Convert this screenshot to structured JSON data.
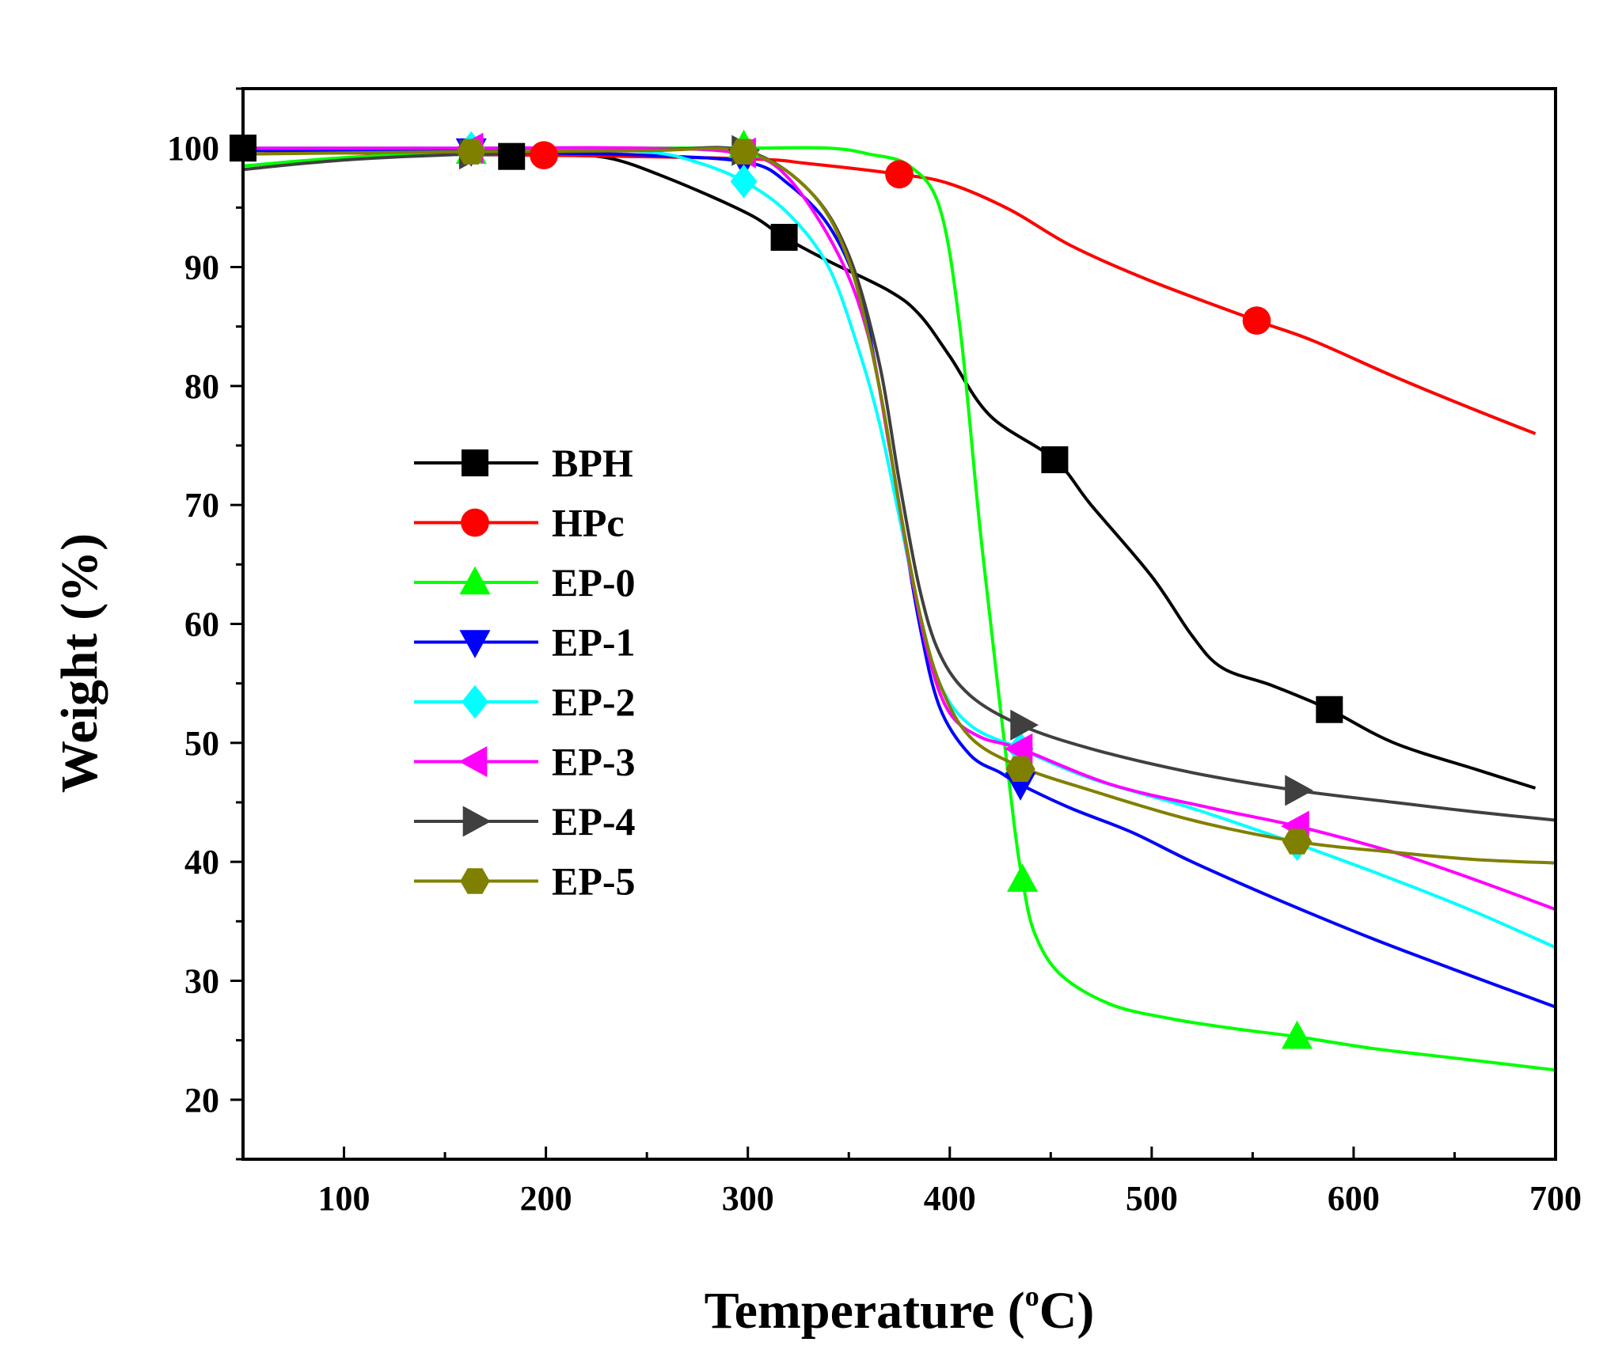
{
  "chart_data": {
    "type": "line",
    "title": "",
    "xlabel": "Temperature (",
    "xlabel_sup": "o",
    "xlabel_unit": "C)",
    "ylabel": "Weight (%)",
    "xlim": [
      50,
      700
    ],
    "ylim": [
      15,
      105
    ],
    "x_ticks": [
      100,
      200,
      300,
      400,
      500,
      600,
      700
    ],
    "x_tick_labels": [
      "100",
      "200",
      "300",
      "400",
      "500",
      "600",
      "700"
    ],
    "y_ticks": [
      20,
      30,
      40,
      50,
      60,
      70,
      80,
      90,
      100
    ],
    "y_tick_labels": [
      "20",
      "30",
      "40",
      "50",
      "60",
      "70",
      "80",
      "90",
      "100"
    ],
    "grid": false,
    "legend_position": "center-left",
    "series": [
      {
        "name": "BPH",
        "color": "#000000",
        "marker": "square",
        "points": [
          [
            50,
            100
          ],
          [
            100,
            99.8
          ],
          [
            150,
            99.5
          ],
          [
            200,
            99.4
          ],
          [
            230,
            99.2
          ],
          [
            260,
            97.5
          ],
          [
            300,
            94.5
          ],
          [
            318,
            92.5
          ],
          [
            340,
            90.5
          ],
          [
            370,
            88
          ],
          [
            385,
            86
          ],
          [
            400,
            82.5
          ],
          [
            420,
            77.5
          ],
          [
            452,
            73.8
          ],
          [
            470,
            70
          ],
          [
            500,
            64
          ],
          [
            520,
            59
          ],
          [
            535,
            56.3
          ],
          [
            560,
            54.8
          ],
          [
            588,
            52.8
          ],
          [
            620,
            50
          ],
          [
            660,
            47.8
          ],
          [
            690,
            46.2
          ]
        ],
        "markers": [
          [
            50,
            100
          ],
          [
            183,
            99.3
          ],
          [
            318,
            92.5
          ],
          [
            452,
            73.8
          ],
          [
            588,
            52.8
          ]
        ]
      },
      {
        "name": "HPc",
        "color": "#ff0000",
        "marker": "circle",
        "points": [
          [
            50,
            99.5
          ],
          [
            100,
            99.6
          ],
          [
            200,
            99.4
          ],
          [
            300,
            99.1
          ],
          [
            330,
            98.7
          ],
          [
            375,
            97.8
          ],
          [
            400,
            97
          ],
          [
            430,
            94.8
          ],
          [
            460,
            91.8
          ],
          [
            500,
            88.8
          ],
          [
            552,
            85.5
          ],
          [
            580,
            83.8
          ],
          [
            620,
            80.8
          ],
          [
            660,
            78
          ],
          [
            690,
            76
          ]
        ],
        "markers": [
          [
            199,
            99.4
          ],
          [
            375,
            97.8
          ],
          [
            552,
            85.5
          ]
        ]
      },
      {
        "name": "EP-0",
        "color": "#00ff00",
        "marker": "triangle-up",
        "points": [
          [
            50,
            98.5
          ],
          [
            100,
            99.2
          ],
          [
            163,
            99.7
          ],
          [
            200,
            99.9
          ],
          [
            250,
            100
          ],
          [
            300,
            100
          ],
          [
            340,
            100
          ],
          [
            360,
            99.5
          ],
          [
            380,
            98.5
          ],
          [
            395,
            95
          ],
          [
            405,
            85
          ],
          [
            415,
            68
          ],
          [
            425,
            53
          ],
          [
            432,
            43
          ],
          [
            436,
            38.5
          ],
          [
            442,
            34
          ],
          [
            455,
            30.5
          ],
          [
            480,
            28
          ],
          [
            510,
            26.8
          ],
          [
            540,
            26
          ],
          [
            572,
            25.3
          ],
          [
            610,
            24.3
          ],
          [
            650,
            23.5
          ],
          [
            700,
            22.5
          ]
        ],
        "markers": [
          [
            163,
            99.7
          ],
          [
            298,
            100.2
          ],
          [
            436,
            38.5
          ],
          [
            572,
            25.3
          ]
        ]
      },
      {
        "name": "EP-1",
        "color": "#0000ff",
        "marker": "triangle-down",
        "points": [
          [
            50,
            99.8
          ],
          [
            163,
            99.8
          ],
          [
            200,
            99.6
          ],
          [
            250,
            99.4
          ],
          [
            300,
            98.8
          ],
          [
            320,
            97
          ],
          [
            340,
            93.5
          ],
          [
            355,
            88
          ],
          [
            365,
            80
          ],
          [
            375,
            70
          ],
          [
            385,
            60
          ],
          [
            395,
            53
          ],
          [
            410,
            49
          ],
          [
            425,
            47.5
          ],
          [
            435,
            46.5
          ],
          [
            460,
            44.5
          ],
          [
            490,
            42.5
          ],
          [
            520,
            40
          ],
          [
            560,
            37
          ],
          [
            610,
            33.5
          ],
          [
            660,
            30.3
          ],
          [
            700,
            27.8
          ]
        ],
        "markers": [
          [
            163,
            99.8
          ],
          [
            298,
            98.9
          ],
          [
            435,
            46.5
          ]
        ]
      },
      {
        "name": "EP-2",
        "color": "#00ffff",
        "marker": "diamond",
        "points": [
          [
            50,
            100
          ],
          [
            163,
            100
          ],
          [
            200,
            100
          ],
          [
            250,
            99.7
          ],
          [
            275,
            98.8
          ],
          [
            298,
            97.2
          ],
          [
            320,
            94.5
          ],
          [
            340,
            90
          ],
          [
            355,
            83
          ],
          [
            365,
            77
          ],
          [
            375,
            69
          ],
          [
            385,
            61
          ],
          [
            395,
            55
          ],
          [
            410,
            51.5
          ],
          [
            435,
            49.5
          ],
          [
            470,
            47
          ],
          [
            520,
            44.5
          ],
          [
            572,
            41.5
          ],
          [
            620,
            38.5
          ],
          [
            660,
            35.8
          ],
          [
            700,
            32.8
          ]
        ],
        "markers": [
          [
            163,
            100
          ],
          [
            298,
            97.2
          ],
          [
            435,
            49.5
          ],
          [
            572,
            41.5
          ]
        ]
      },
      {
        "name": "EP-3",
        "color": "#ff00ff",
        "marker": "triangle-left",
        "points": [
          [
            50,
            100
          ],
          [
            163,
            100
          ],
          [
            250,
            100
          ],
          [
            298,
            99.5
          ],
          [
            320,
            97.5
          ],
          [
            345,
            91
          ],
          [
            360,
            84
          ],
          [
            370,
            75
          ],
          [
            380,
            65
          ],
          [
            390,
            57
          ],
          [
            400,
            52.5
          ],
          [
            415,
            50.5
          ],
          [
            435,
            49.5
          ],
          [
            480,
            46.5
          ],
          [
            530,
            44.5
          ],
          [
            572,
            43
          ],
          [
            620,
            40.8
          ],
          [
            660,
            38.5
          ],
          [
            700,
            36
          ]
        ],
        "markers": [
          [
            163,
            100
          ],
          [
            298,
            99.6
          ],
          [
            435,
            49.5
          ],
          [
            572,
            43
          ]
        ]
      },
      {
        "name": "EP-4",
        "color": "#404040",
        "marker": "triangle-right",
        "points": [
          [
            50,
            98.2
          ],
          [
            100,
            99
          ],
          [
            163,
            99.5
          ],
          [
            250,
            99.8
          ],
          [
            298,
            99.8
          ],
          [
            330,
            96.5
          ],
          [
            350,
            91
          ],
          [
            365,
            82
          ],
          [
            375,
            72
          ],
          [
            385,
            63
          ],
          [
            395,
            57.5
          ],
          [
            410,
            54
          ],
          [
            435,
            51.5
          ],
          [
            470,
            49.5
          ],
          [
            520,
            47.5
          ],
          [
            572,
            46
          ],
          [
            620,
            45
          ],
          [
            660,
            44.2
          ],
          [
            700,
            43.5
          ]
        ],
        "markers": [
          [
            163,
            99.5
          ],
          [
            298,
            99.8
          ],
          [
            436,
            51.5
          ],
          [
            572,
            46
          ]
        ]
      },
      {
        "name": "EP-5",
        "color": "#808000",
        "marker": "hexagon",
        "points": [
          [
            50,
            99.5
          ],
          [
            163,
            99.7
          ],
          [
            250,
            99.8
          ],
          [
            298,
            99.7
          ],
          [
            330,
            96.5
          ],
          [
            350,
            90.5
          ],
          [
            365,
            80
          ],
          [
            375,
            70
          ],
          [
            385,
            61
          ],
          [
            395,
            55
          ],
          [
            410,
            50.5
          ],
          [
            435,
            48
          ],
          [
            470,
            46
          ],
          [
            520,
            43.5
          ],
          [
            572,
            41.7
          ],
          [
            620,
            40.8
          ],
          [
            660,
            40.2
          ],
          [
            700,
            39.9
          ]
        ],
        "markers": [
          [
            163,
            99.7
          ],
          [
            298,
            99.7
          ],
          [
            435,
            47.8
          ],
          [
            572,
            41.7
          ]
        ]
      }
    ]
  }
}
